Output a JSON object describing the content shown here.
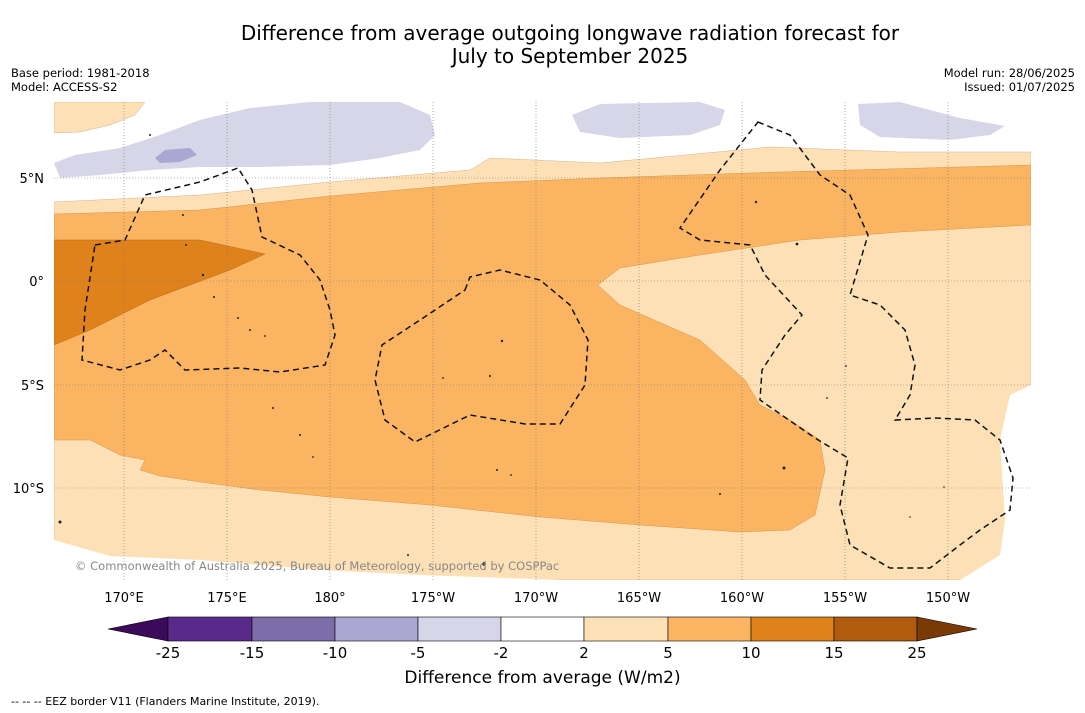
{
  "title_line1": "Difference from average outgoing longwave radiation forecast for",
  "title_line2": "July to September 2025",
  "base_period": "Base period: 1981-2018",
  "model": "Model: ACCESS-S2",
  "model_run": "Model run: 28/06/2025",
  "issued": "Issued: 01/07/2025",
  "copyright": "© Commonwealth of Australia 2025, Bureau of Meteorology, supported by COSPPac",
  "lat_labels": [
    "5°N",
    "0°",
    "5°S",
    "10°S"
  ],
  "lon_labels": [
    "170°E",
    "175°E",
    "180°",
    "175°W",
    "170°W",
    "165°W",
    "160°W",
    "155°W",
    "150°W"
  ],
  "colorbar": {
    "title": "Difference from average (W/m2)",
    "ticks": [
      "-25",
      "-15",
      "-10",
      "-5",
      "-2",
      "2",
      "5",
      "10",
      "15",
      "25"
    ],
    "colors": [
      "#3c0a5a",
      "#5a2a8a",
      "#7d6eaa",
      "#aba6d2",
      "#d6d6e8",
      "#ffffff",
      "#fde0b6",
      "#fbb462",
      "#e0821b",
      "#b05b0e",
      "#7a3a05"
    ]
  },
  "footnote": "-- -- -- EEZ border V11 (Flanders Marine Institute, 2019).",
  "colors": {
    "light_purple": "#d6d6e8",
    "mid_purple": "#aba6d2",
    "light_orange": "#fde0b6",
    "mid_orange": "#fbb462",
    "dark_orange": "#e0821b"
  }
}
